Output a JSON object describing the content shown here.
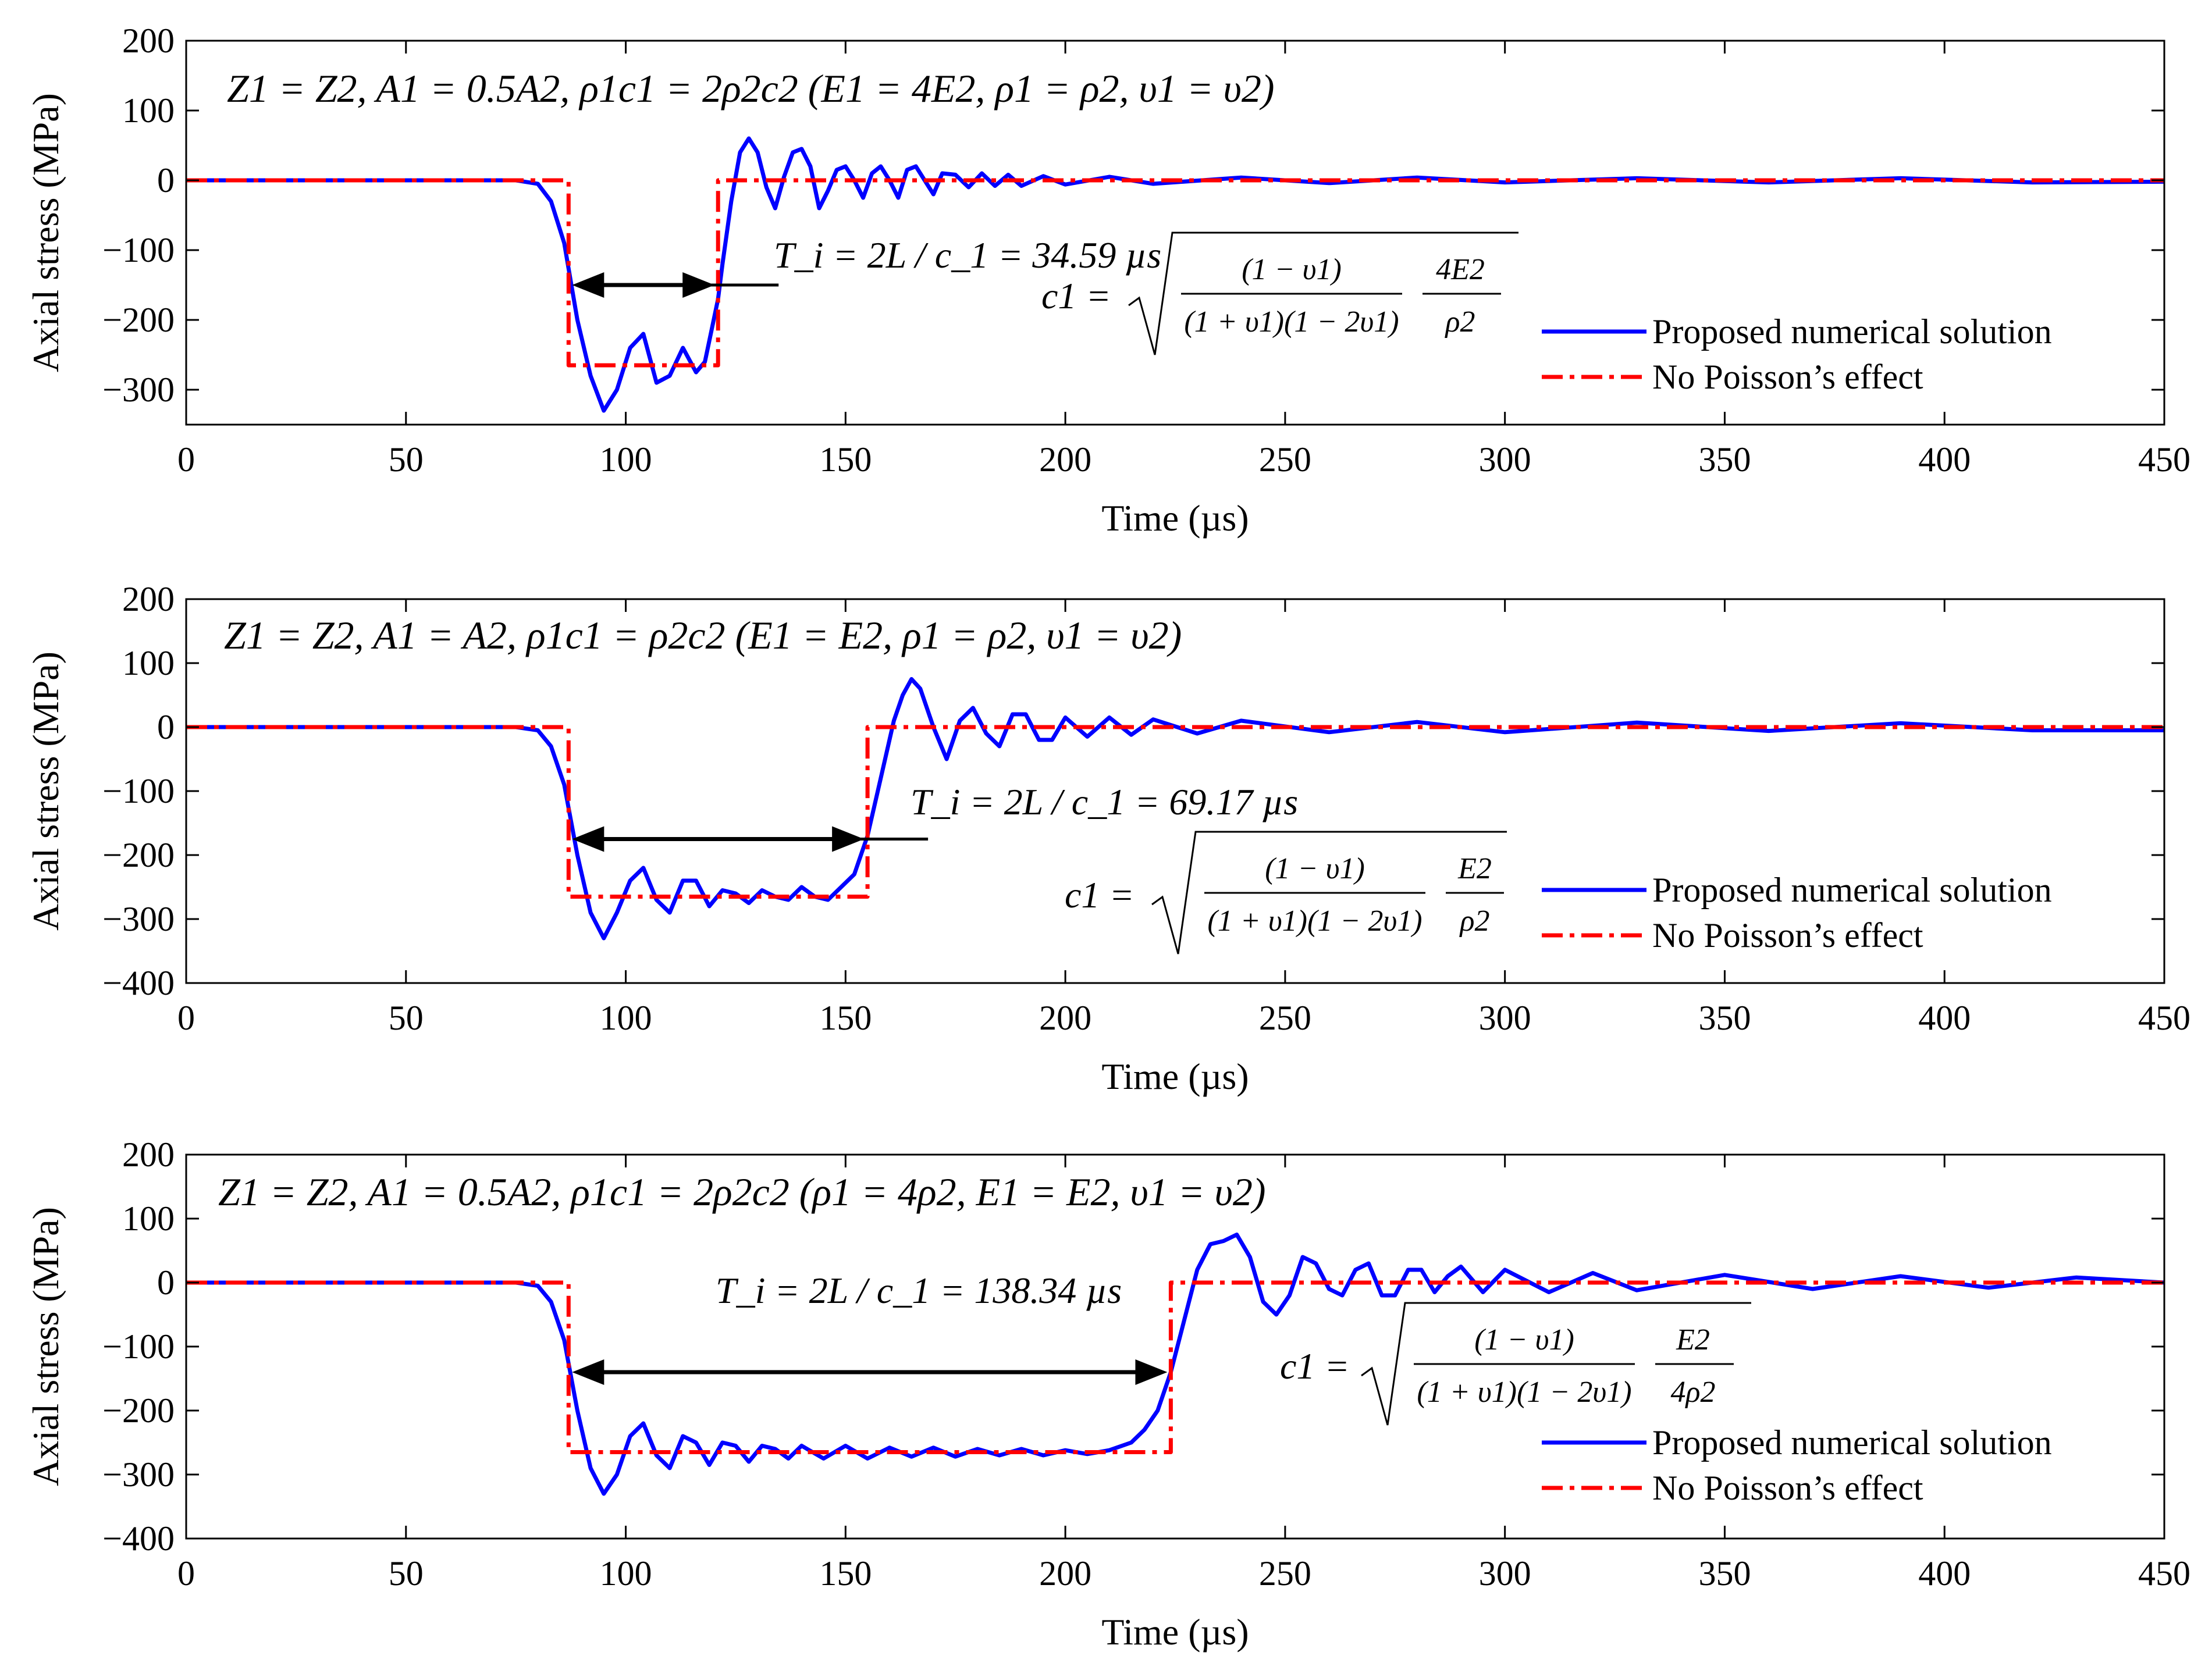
{
  "chart_data": [
    {
      "type": "line",
      "title": "Z1 = Z2, A1 = 0.5A2, ρ1c1 = 2ρ2c2 (E1 = 4E2, ρ1 = ρ2, υ1 = υ2)",
      "xlabel": "Time (µs)",
      "ylabel": "Axial stress (MPa)",
      "xlim": [
        0,
        450
      ],
      "ylim": [
        -350,
        200
      ],
      "xticks": [
        0,
        50,
        100,
        150,
        200,
        250,
        300,
        350,
        400,
        450
      ],
      "yticks": [
        200,
        100,
        0,
        -100,
        -200,
        -300
      ],
      "legend_position": "right",
      "transit_time_label": "T_i = 2L / c_1 = 34.59 µs",
      "formula_lhs": "c1 =",
      "formula_num": "(1 − υ1)",
      "formula_den": "(1 + υ1)(1 − 2υ1)",
      "formula_frac_num": "4E2",
      "formula_frac_den": "ρ2",
      "arrow_range": [
        87,
        121
      ],
      "series": [
        {
          "name": "Proposed numerical solution",
          "style": "solid",
          "color": "#0000ff",
          "x": [
            0,
            75,
            80,
            83,
            86,
            89,
            92,
            95,
            98,
            101,
            104,
            107,
            110,
            113,
            116,
            118,
            120,
            121,
            122,
            124,
            126,
            128,
            130,
            132,
            134,
            136,
            138,
            140,
            142,
            144,
            146,
            148,
            150,
            152,
            154,
            156,
            158,
            160,
            162,
            164,
            166,
            168,
            170,
            172,
            175,
            178,
            181,
            184,
            187,
            190,
            195,
            200,
            210,
            220,
            240,
            260,
            280,
            300,
            330,
            360,
            390,
            420,
            450
          ],
          "values": [
            0,
            0,
            -5,
            -30,
            -90,
            -200,
            -280,
            -330,
            -300,
            -240,
            -220,
            -290,
            -280,
            -240,
            -275,
            -260,
            -200,
            -170,
            -120,
            -30,
            40,
            60,
            40,
            -10,
            -40,
            5,
            40,
            45,
            20,
            -40,
            -15,
            15,
            20,
            0,
            -25,
            10,
            20,
            0,
            -25,
            15,
            20,
            0,
            -20,
            10,
            8,
            -10,
            10,
            -8,
            8,
            -8,
            6,
            -6,
            5,
            -5,
            4,
            -4,
            4,
            -3,
            3,
            -3,
            3,
            -3,
            -2
          ]
        },
        {
          "name": "No Poisson’s effect",
          "style": "dashdot",
          "color": "#ff0000",
          "x": [
            0,
            87,
            87,
            121,
            121,
            450
          ],
          "values": [
            0,
            0,
            -265,
            -265,
            0,
            0
          ]
        }
      ]
    },
    {
      "type": "line",
      "title": "Z1 = Z2, A1 = A2, ρ1c1 = ρ2c2 (E1 = E2, ρ1 = ρ2, υ1 = υ2)",
      "xlabel": "Time (µs)",
      "ylabel": "Axial stress (MPa)",
      "xlim": [
        0,
        450
      ],
      "ylim": [
        -400,
        200
      ],
      "xticks": [
        0,
        50,
        100,
        150,
        200,
        250,
        300,
        350,
        400,
        450
      ],
      "yticks": [
        200,
        100,
        0,
        -100,
        -200,
        -300,
        -400
      ],
      "legend_position": "right",
      "transit_time_label": "T_i = 2L / c_1 = 69.17 µs",
      "formula_lhs": "c1 =",
      "formula_num": "(1 − υ1)",
      "formula_den": "(1 + υ1)(1 − 2υ1)",
      "formula_frac_num": "E2",
      "formula_frac_den": "ρ2",
      "arrow_range": [
        87,
        155
      ],
      "series": [
        {
          "name": "Proposed numerical solution",
          "style": "solid",
          "color": "#0000ff",
          "x": [
            0,
            75,
            80,
            83,
            86,
            89,
            92,
            95,
            98,
            101,
            104,
            107,
            110,
            113,
            116,
            119,
            122,
            125,
            128,
            131,
            134,
            137,
            140,
            143,
            146,
            149,
            152,
            155,
            158,
            161,
            163,
            165,
            167,
            170,
            173,
            176,
            179,
            182,
            185,
            188,
            191,
            194,
            197,
            200,
            205,
            210,
            215,
            220,
            230,
            240,
            260,
            280,
            300,
            330,
            360,
            390,
            420,
            450
          ],
          "values": [
            0,
            0,
            -5,
            -30,
            -90,
            -200,
            -290,
            -330,
            -290,
            -240,
            -220,
            -270,
            -290,
            -240,
            -240,
            -280,
            -255,
            -260,
            -275,
            -255,
            -265,
            -270,
            -250,
            -265,
            -270,
            -250,
            -230,
            -170,
            -80,
            10,
            50,
            75,
            60,
            0,
            -50,
            10,
            30,
            -10,
            -30,
            20,
            20,
            -20,
            -20,
            15,
            -15,
            15,
            -12,
            12,
            -10,
            10,
            -8,
            8,
            -8,
            7,
            -6,
            6,
            -5,
            -5
          ]
        },
        {
          "name": "No Poisson’s effect",
          "style": "dashdot",
          "color": "#ff0000",
          "x": [
            0,
            87,
            87,
            155,
            155,
            450
          ],
          "values": [
            0,
            0,
            -265,
            -265,
            0,
            0
          ]
        }
      ]
    },
    {
      "type": "line",
      "title": "Z1 = Z2, A1 = 0.5A2, ρ1c1 = 2ρ2c2 (ρ1 = 4ρ2, E1 = E2, υ1 = υ2)",
      "xlabel": "Time (µs)",
      "ylabel": "Axial stress (MPa)",
      "xlim": [
        0,
        450
      ],
      "ylim": [
        -400,
        200
      ],
      "xticks": [
        0,
        50,
        100,
        150,
        200,
        250,
        300,
        350,
        400,
        450
      ],
      "yticks": [
        200,
        100,
        0,
        -100,
        -200,
        -300,
        -400
      ],
      "legend_position": "right",
      "transit_time_label": "T_i = 2L / c_1 = 138.34 µs",
      "formula_lhs": "c1 =",
      "formula_num": "(1 − υ1)",
      "formula_den": "(1 + υ1)(1 − 2υ1)",
      "formula_frac_num": "E2",
      "formula_frac_den": "4ρ2",
      "arrow_range": [
        87,
        224
      ],
      "series": [
        {
          "name": "Proposed numerical solution",
          "style": "solid",
          "color": "#0000ff",
          "x": [
            0,
            75,
            80,
            83,
            86,
            89,
            92,
            95,
            98,
            101,
            104,
            107,
            110,
            113,
            116,
            119,
            122,
            125,
            128,
            131,
            134,
            137,
            140,
            145,
            150,
            155,
            160,
            165,
            170,
            175,
            180,
            185,
            190,
            195,
            200,
            205,
            210,
            215,
            218,
            221,
            224,
            227,
            230,
            233,
            236,
            239,
            242,
            245,
            248,
            251,
            254,
            257,
            260,
            263,
            266,
            269,
            272,
            275,
            278,
            281,
            284,
            287,
            290,
            295,
            300,
            310,
            320,
            330,
            350,
            370,
            390,
            410,
            430,
            450
          ],
          "values": [
            0,
            0,
            -5,
            -30,
            -90,
            -200,
            -290,
            -330,
            -300,
            -240,
            -220,
            -270,
            -290,
            -240,
            -250,
            -285,
            -250,
            -255,
            -280,
            -255,
            -260,
            -275,
            -255,
            -275,
            -255,
            -275,
            -258,
            -272,
            -258,
            -272,
            -260,
            -270,
            -260,
            -270,
            -262,
            -268,
            -262,
            -250,
            -230,
            -200,
            -140,
            -60,
            20,
            60,
            65,
            75,
            40,
            -30,
            -50,
            -20,
            40,
            30,
            -10,
            -20,
            20,
            30,
            -20,
            -20,
            20,
            20,
            -15,
            10,
            25,
            -15,
            20,
            -15,
            15,
            -12,
            12,
            -10,
            10,
            -8,
            8,
            0
          ]
        },
        {
          "name": "No Poisson’s effect",
          "style": "dashdot",
          "color": "#ff0000",
          "x": [
            0,
            87,
            87,
            224,
            224,
            450
          ],
          "values": [
            0,
            0,
            -265,
            -265,
            0,
            0
          ]
        }
      ]
    }
  ]
}
